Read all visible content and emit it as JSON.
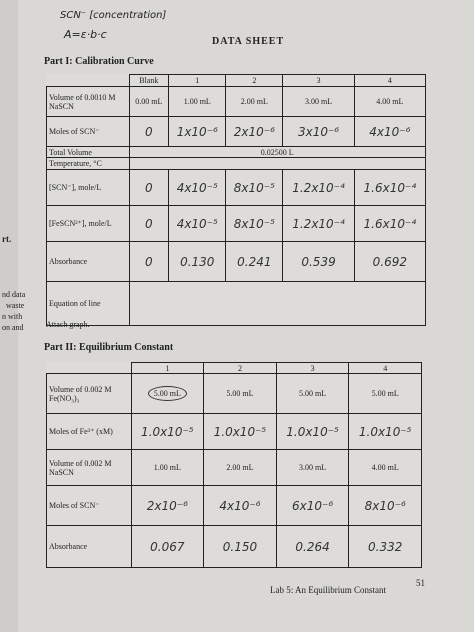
{
  "header": {
    "notes": [
      "SCN⁻ [concentration]",
      "A=ε·b·c"
    ],
    "title": "DATA SHEET",
    "part1": "Part I: Calibration Curve"
  },
  "margin": [
    "rt.",
    "nd data",
    "waste",
    "n with",
    "on and"
  ],
  "table1": {
    "columns": [
      "Blank",
      "1",
      "2",
      "3",
      "4"
    ],
    "rows": [
      [
        "Volume of 0.0010 M NaSCN",
        "0.00 mL",
        "1.00 mL",
        "2.00 mL",
        "3.00 mL",
        "4.00 mL"
      ],
      [
        "Moles of SCN⁻",
        "0",
        "1x10⁻⁶",
        "2x10⁻⁶",
        "3x10⁻⁶",
        "4x10⁻⁶"
      ],
      [
        "Total Volume",
        "0.02500 L"
      ],
      [
        "Temperature, °C"
      ],
      [
        "[SCN⁻], mole/L",
        "0",
        "4x10⁻⁵",
        "8x10⁻⁵",
        "1.2x10⁻⁴",
        "1.6x10⁻⁴"
      ],
      [
        "[FeSCN²⁺], mole/L",
        "0",
        "4x10⁻⁵",
        "8x10⁻⁵",
        "1.2x10⁻⁴",
        "1.6x10⁻⁴"
      ],
      [
        "Absorbance",
        "0",
        "0.130",
        "0.241",
        "0.539",
        "0.692"
      ],
      [
        "Equation of line"
      ]
    ]
  },
  "attach": "Attach graph.",
  "part2": "Part II: Equilibrium Constant",
  "table2": {
    "columns": [
      "1",
      "2",
      "3",
      "4"
    ],
    "rows": [
      [
        "Volume of 0.002 M Fe(NO₃)₃",
        "5.00 mL",
        "5.00 mL",
        "5.00 mL",
        "5.00 mL"
      ],
      [
        "Moles of Fe³⁺ (xM)",
        "1.0x10⁻⁵",
        "1.0x10⁻⁵",
        "1.0x10⁻⁵",
        "1.0x10⁻⁵"
      ],
      [
        "Volume of 0.002 M NaSCN",
        "1.00 mL",
        "2.00 mL",
        "3.00 mL",
        "4.00 mL"
      ],
      [
        "Moles of SCN⁻",
        "2x10⁻⁶",
        "4x10⁻⁶",
        "6x10⁻⁶",
        "8x10⁻⁶"
      ],
      [
        "Absorbance",
        "0.067",
        "0.150",
        "0.264",
        "0.332"
      ]
    ]
  },
  "footer": {
    "lab": "Lab 5: An Equilibrium Constant",
    "page": "51"
  }
}
